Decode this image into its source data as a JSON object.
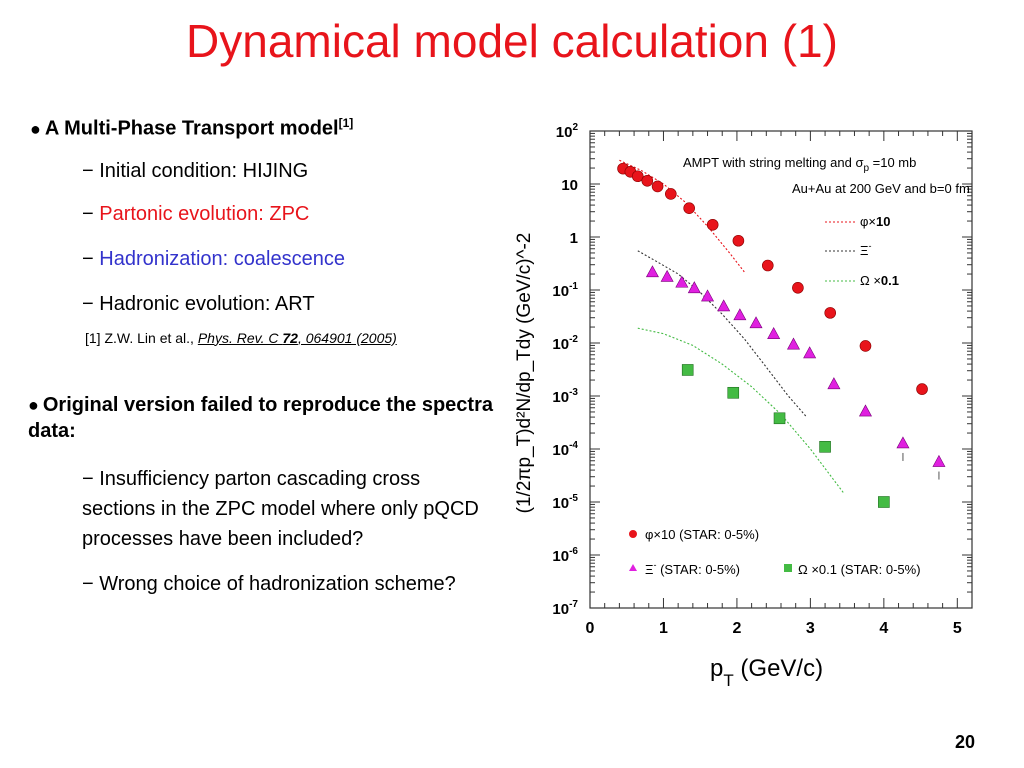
{
  "slide": {
    "title": "Dynamical model calculation (1)",
    "page_number": "20"
  },
  "bullets": [
    {
      "lead": "A Multi-Phase Transport model",
      "superscript": "[1]",
      "items": [
        {
          "dash": "−",
          "text": "Initial condition: HIJING",
          "color": "#000000"
        },
        {
          "dash": "−",
          "text": "Partonic evolution: ZPC",
          "color": "#e8141b"
        },
        {
          "dash": "−",
          "text": "Hadronization: coalescence",
          "color": "#3333cc"
        },
        {
          "dash": "−",
          "text": "Hadronic evolution: ART",
          "color": "#000000"
        }
      ],
      "reference": {
        "prefix": "[1] Z.W. Lin et al., ",
        "journal": "Phys. Rev. C ",
        "volume": "72",
        "pages": ", 064901 (2005)"
      }
    },
    {
      "lead": "Original version failed to reproduce the spectra data:",
      "items": [
        {
          "dash": "−",
          "text": "Insufficiency parton cascading cross sections in the ZPC model where only pQCD processes have been included?"
        },
        {
          "dash": "−",
          "text": "Wrong choice of hadronization scheme?"
        }
      ]
    }
  ],
  "chart_data": {
    "type": "scatter",
    "xlabel_main": "p",
    "xlabel_sub": "T",
    "xlabel_unit": " (GeV/c)",
    "ylabel": "(1/2πp_T)d²N/dp_Tdy (GeV/c)^-2",
    "xlim": [
      0,
      5.2
    ],
    "ylim_log10": [
      -7,
      2
    ],
    "y_scale": "log",
    "x_ticks": [
      "0",
      "1",
      "2",
      "3",
      "4",
      "5"
    ],
    "y_ticks": [
      {
        "base": "10",
        "exp": "2",
        "log": 2
      },
      {
        "base": "10",
        "exp": "",
        "log": 1
      },
      {
        "base": "1",
        "exp": "",
        "log": 0
      },
      {
        "base": "10",
        "exp": "-1",
        "log": -1
      },
      {
        "base": "10",
        "exp": "-2",
        "log": -2
      },
      {
        "base": "10",
        "exp": "-3",
        "log": -3
      },
      {
        "base": "10",
        "exp": "-4",
        "log": -4
      },
      {
        "base": "10",
        "exp": "-5",
        "log": -5
      },
      {
        "base": "10",
        "exp": "-6",
        "log": -6
      },
      {
        "base": "10",
        "exp": "-7",
        "log": -7
      }
    ],
    "annotations": [
      {
        "text": "AMPT with string melting and σ",
        "sub": "p",
        "tail": " =10 mb"
      },
      {
        "text": "Au+Au at 200 GeV and b=0 fm",
        "sub": "",
        "tail": ""
      }
    ],
    "curve_legend": [
      {
        "label": "φ×",
        "bold": "10",
        "color": "#e8141b"
      },
      {
        "label": "Ξ",
        "sup": "-",
        "bold": "",
        "color": "#333333"
      },
      {
        "label": "Ω ×",
        "bold": "0.1",
        "color": "#44bb44"
      }
    ],
    "data_legend": [
      {
        "marker": "circle",
        "color": "#e8141b",
        "label": "φ×10 (STAR: 0-5%)"
      },
      {
        "marker": "triangle",
        "color": "#e020e0",
        "label": "Ξ",
        "sup": "-",
        "tail": " (STAR: 0-5%)"
      },
      {
        "marker": "square",
        "color": "#44bb44",
        "label": "Ω ×0.1 (STAR: 0-5%)"
      }
    ],
    "series": [
      {
        "name": "φ×10 (STAR: 0-5%)",
        "marker": "circle",
        "color": "#e8141b",
        "points": [
          [
            0.45,
            19.5
          ],
          [
            0.55,
            17
          ],
          [
            0.65,
            14
          ],
          [
            0.78,
            11.5
          ],
          [
            0.92,
            9
          ],
          [
            1.1,
            6.5
          ],
          [
            1.35,
            3.5
          ],
          [
            1.67,
            1.7
          ],
          [
            2.02,
            0.85
          ],
          [
            2.42,
            0.29
          ],
          [
            2.83,
            0.11
          ],
          [
            3.27,
            0.037
          ],
          [
            3.75,
            0.0088
          ],
          [
            4.52,
            0.00135
          ]
        ]
      },
      {
        "name": "Ξ- (STAR: 0-5%)",
        "marker": "triangle",
        "color": "#e020e0",
        "points": [
          [
            0.85,
            0.22
          ],
          [
            1.05,
            0.18
          ],
          [
            1.25,
            0.14
          ],
          [
            1.42,
            0.11
          ],
          [
            1.6,
            0.077
          ],
          [
            1.82,
            0.05
          ],
          [
            2.04,
            0.034
          ],
          [
            2.26,
            0.024
          ],
          [
            2.5,
            0.015
          ],
          [
            2.77,
            0.0095
          ],
          [
            2.99,
            0.0065
          ],
          [
            3.32,
            0.0017
          ],
          [
            3.75,
            0.00052
          ],
          [
            4.26,
            0.00013
          ],
          [
            4.75,
            5.8e-05
          ]
        ]
      },
      {
        "name": "Ω ×0.1 (STAR: 0-5%)",
        "marker": "square",
        "color": "#44bb44",
        "points": [
          [
            1.33,
            0.0031
          ],
          [
            1.95,
            0.00115
          ],
          [
            2.58,
            0.00038
          ],
          [
            3.2,
            0.00011
          ],
          [
            4.0,
            1e-05
          ]
        ]
      }
    ],
    "curves": [
      {
        "name": "φ×10 AMPT",
        "color": "#e8141b",
        "points": [
          [
            0.4,
            28
          ],
          [
            0.7,
            18
          ],
          [
            1.0,
            10
          ],
          [
            1.3,
            4.5
          ],
          [
            1.6,
            1.6
          ],
          [
            1.9,
            0.5
          ],
          [
            2.1,
            0.22
          ]
        ]
      },
      {
        "name": "Ξ- AMPT",
        "color": "#333333",
        "points": [
          [
            0.65,
            0.55
          ],
          [
            0.9,
            0.35
          ],
          [
            1.2,
            0.2
          ],
          [
            1.5,
            0.09
          ],
          [
            1.8,
            0.035
          ],
          [
            2.1,
            0.012
          ],
          [
            2.4,
            0.0035
          ],
          [
            2.7,
            0.001
          ],
          [
            2.95,
            0.0004
          ]
        ]
      },
      {
        "name": "Ω×0.1 AMPT",
        "color": "#44bb44",
        "points": [
          [
            0.65,
            0.019
          ],
          [
            1.0,
            0.015
          ],
          [
            1.4,
            0.009
          ],
          [
            1.8,
            0.004
          ],
          [
            2.2,
            0.0015
          ],
          [
            2.6,
            0.00045
          ],
          [
            3.0,
            0.0001
          ],
          [
            3.45,
            1.5e-05
          ]
        ]
      }
    ]
  }
}
